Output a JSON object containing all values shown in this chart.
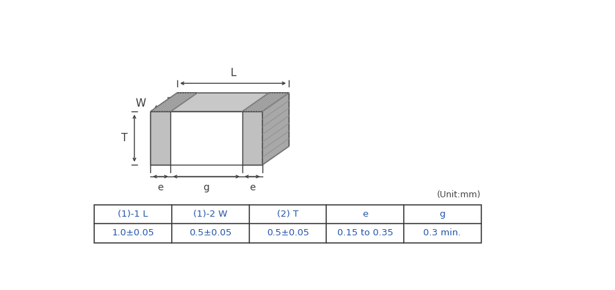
{
  "bg_color": "#ffffff",
  "fig_width": 8.88,
  "fig_height": 4.19,
  "dpi": 100,
  "table_headers": [
    "(1)-1 L",
    "(1)-2 W",
    "(2) T",
    "e",
    "g"
  ],
  "table_values": [
    "1.0±0.05",
    "0.5±0.05",
    "0.5±0.05",
    "0.15 to 0.35",
    "0.3 min."
  ],
  "unit_label": "(Unit:mm)",
  "line_color": "#3c3c3c",
  "body_color": "#ffffff",
  "cap_color": "#c0c0c0",
  "top_color": "#c8c8c8",
  "right_color": "#d8d8d8",
  "hatch_color": "#909090",
  "text_color": "#3c3c3c",
  "table_text_color": "#2255aa"
}
